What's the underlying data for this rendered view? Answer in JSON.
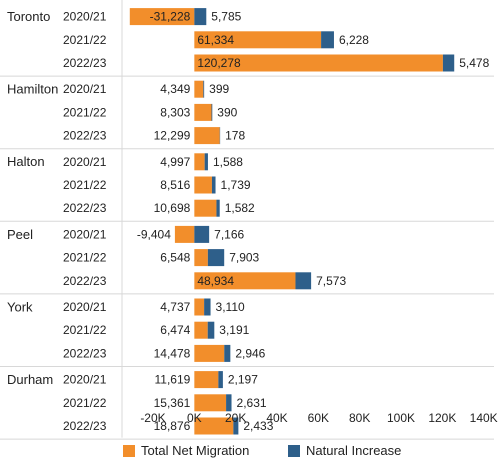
{
  "chart_data": {
    "type": "bar",
    "orientation": "horizontal",
    "stacked": true,
    "regions": [
      "Toronto",
      "Hamilton",
      "Halton",
      "Peel",
      "York",
      "Durham"
    ],
    "years": [
      "2020/21",
      "2021/22",
      "2022/23"
    ],
    "series": [
      {
        "name": "Total Net Migration",
        "color": "#f28e2b",
        "values": [
          -31228,
          61334,
          120278,
          4349,
          8303,
          12299,
          4997,
          8516,
          10698,
          -9404,
          6548,
          48934,
          4737,
          6474,
          14478,
          11619,
          15361,
          18876
        ],
        "labels": [
          "-31,228",
          "61,334",
          "120,278",
          "4,349",
          "8,303",
          "12,299",
          "4,997",
          "8,516",
          "10,698",
          "-9,404",
          "6,548",
          "48,934",
          "4,737",
          "6,474",
          "14,478",
          "11,619",
          "15,361",
          "18,876"
        ]
      },
      {
        "name": "Natural Increase",
        "color": "#2e5f8a",
        "values": [
          5785,
          6228,
          5478,
          399,
          390,
          178,
          1588,
          1739,
          1582,
          7166,
          7903,
          7573,
          3110,
          3191,
          2946,
          2197,
          2631,
          2433
        ],
        "labels": [
          "5,785",
          "6,228",
          "5,478",
          "399",
          "390",
          "178",
          "1,588",
          "1,739",
          "1,582",
          "7,166",
          "7,903",
          "7,573",
          "3,110",
          "3,191",
          "2,946",
          "2,197",
          "2,631",
          "2,433"
        ]
      }
    ],
    "x_ticks": [
      -20000,
      0,
      20000,
      40000,
      60000,
      80000,
      100000,
      120000,
      140000
    ],
    "x_tick_labels": [
      "-20K",
      "0K",
      "20K",
      "40K",
      "60K",
      "80K",
      "100K",
      "120K",
      "140K"
    ],
    "xlim": [
      -35000,
      145000
    ],
    "legend_position": "bottom",
    "grid": false
  }
}
